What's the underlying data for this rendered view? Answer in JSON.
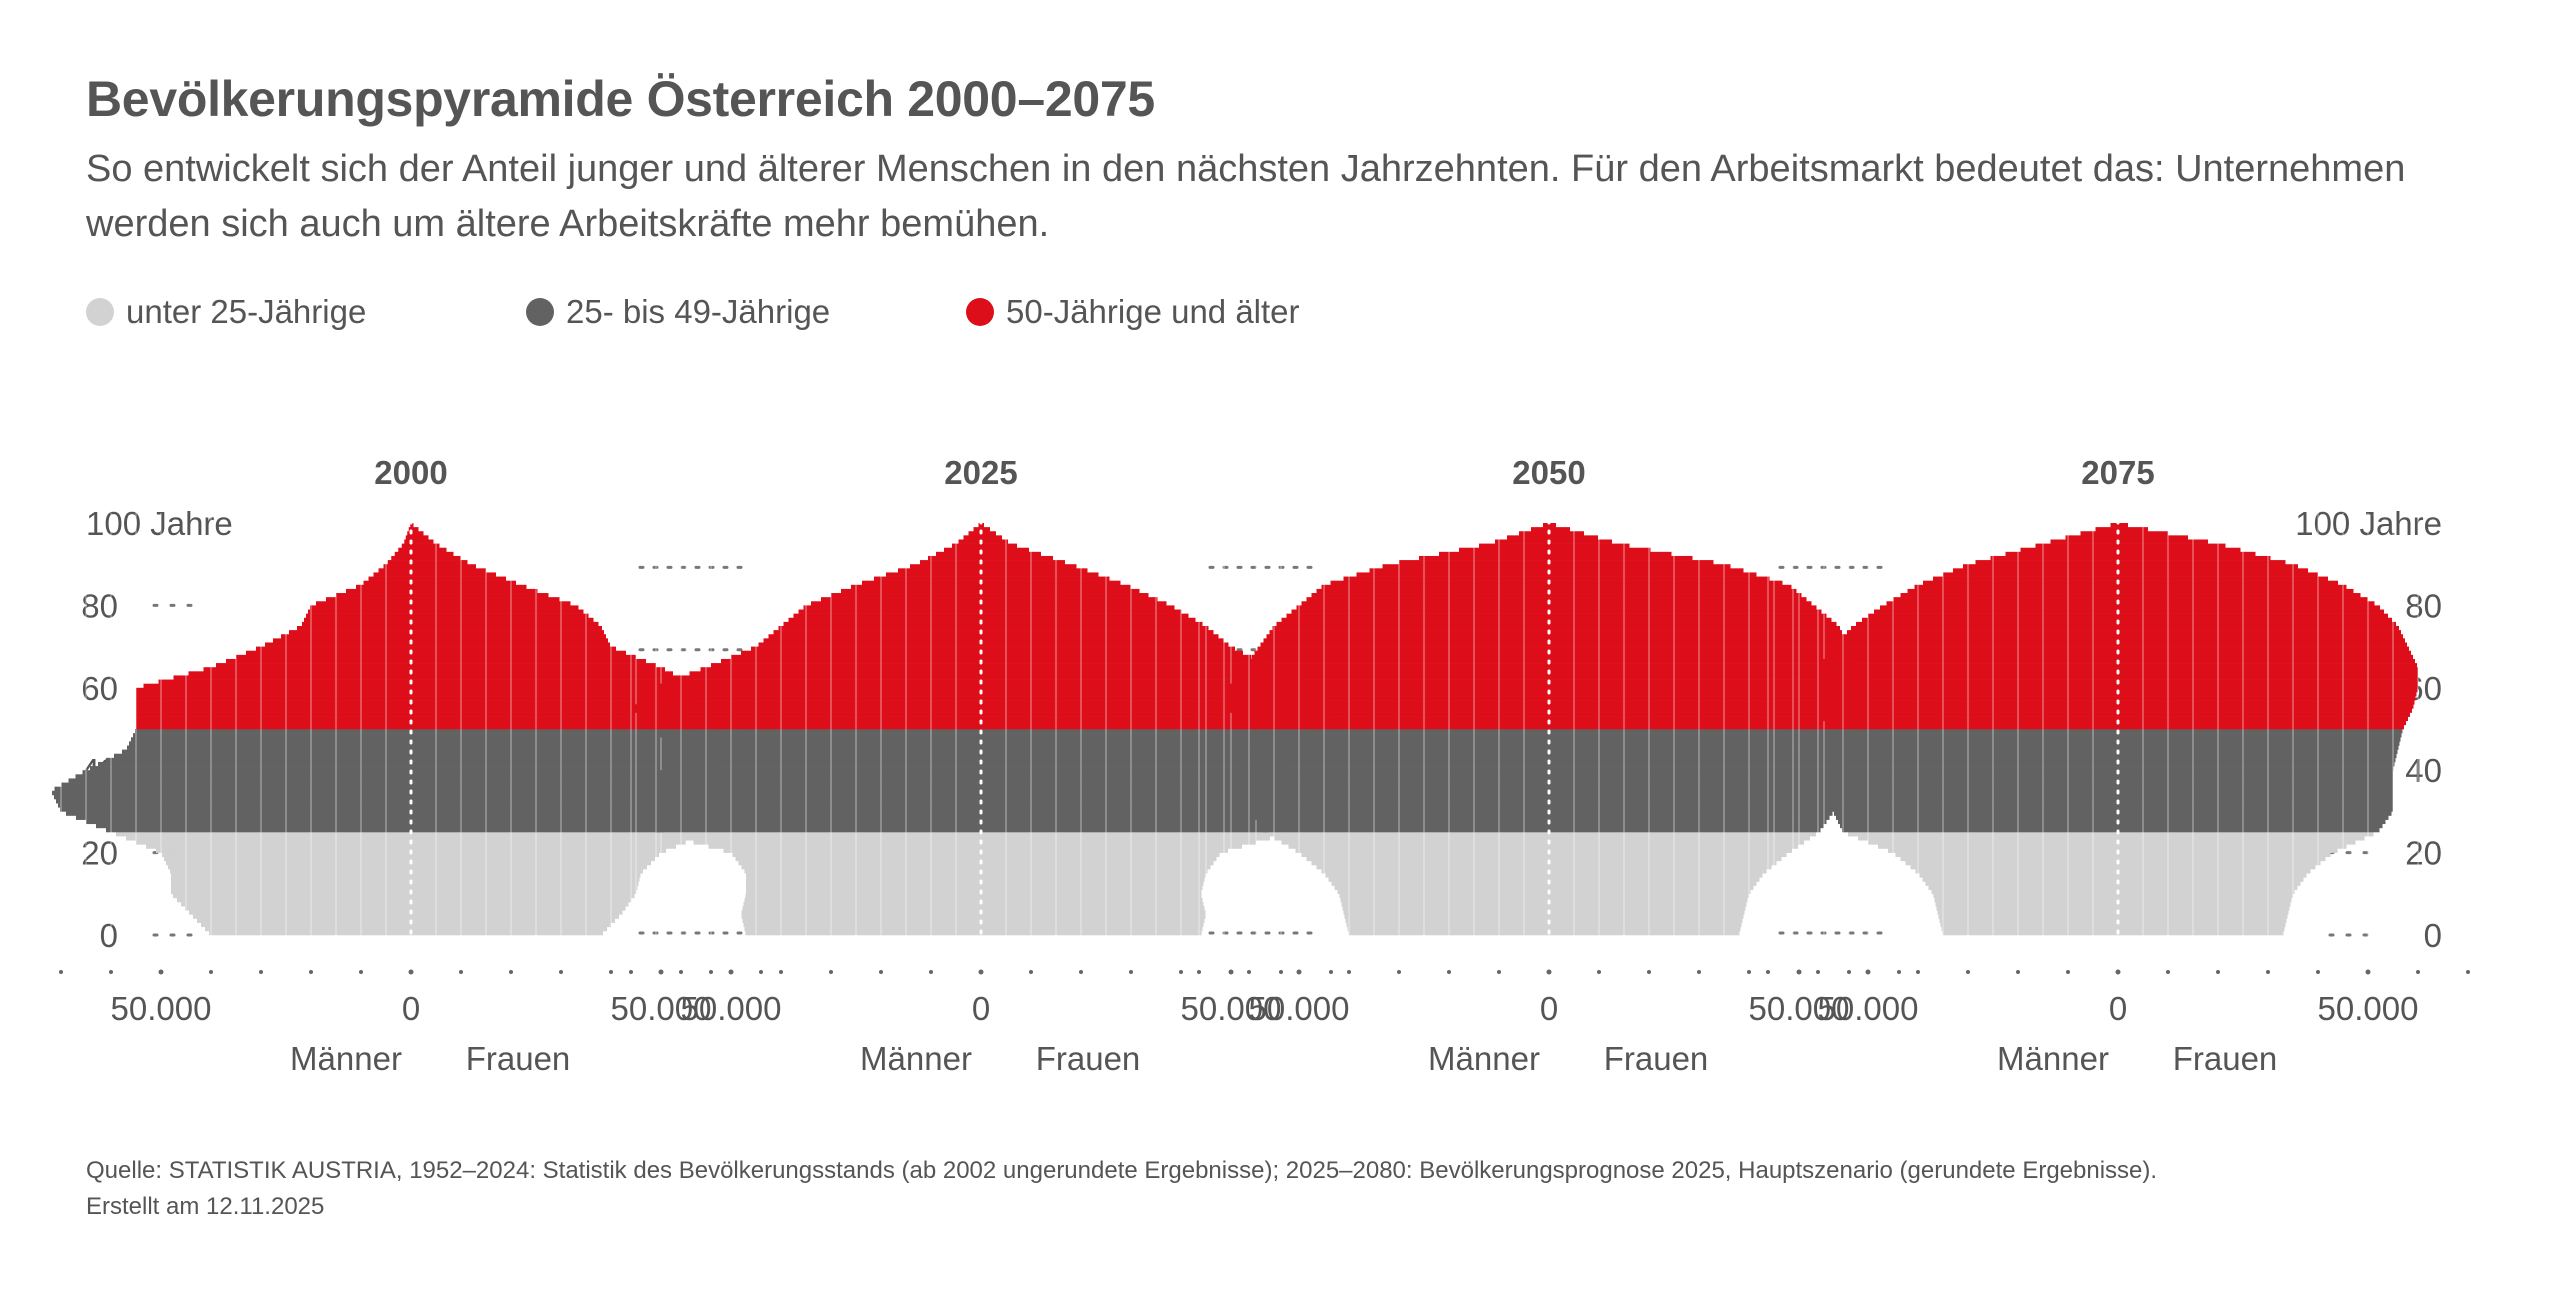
{
  "title": "Bevölkerungspyramide Österreich 2000–2075",
  "subtitle": "So entwickelt sich der Anteil junger und älterer Menschen in den nächsten Jahrzehnten. Für den Arbeitsmarkt bedeutet das: Unternehmen werden sich auch um ältere Arbeitskräfte mehr bemühen.",
  "legend": [
    {
      "label": "unter 25-Jährige",
      "color": "#d2d2d2"
    },
    {
      "label": "25- bis 49-Jährige",
      "color": "#626262"
    },
    {
      "label": "50-Jährige und älter",
      "color": "#dd0e19"
    }
  ],
  "source": {
    "line1": "Quelle: STATISTIK AUSTRIA, 1952–2024: Statistik des Bevölkerungsstands (ab 2002 ungerundete Ergebnisse); 2025–2080: Bevölkerungsprognose 2025, Hauptszenario (gerundete Ergebnisse).",
    "line2": "Erstellt am 12.11.2025"
  },
  "chart_data": {
    "type": "population-pyramid",
    "age_unit_label": "Jahre",
    "y_ticks": [
      0,
      20,
      40,
      60,
      80,
      100
    ],
    "y_top_label": "100 Jahre",
    "ylim": [
      0,
      100
    ],
    "x_ticks": [
      -50000,
      0,
      50000
    ],
    "x_tick_labels": [
      "50.000",
      "0",
      "50.000"
    ],
    "xlim": [
      -70000,
      70000
    ],
    "male_label": "Männer",
    "female_label": "Frauen",
    "age_groups": [
      {
        "name": "unter 25-Jährige",
        "from": 0,
        "to": 24,
        "color": "#d2d2d2"
      },
      {
        "name": "25- bis 49-Jährige",
        "from": 25,
        "to": 49,
        "color": "#626262"
      },
      {
        "name": "50-Jährige und älter",
        "from": 50,
        "to": 100,
        "color": "#dd0e19"
      }
    ],
    "panels": [
      {
        "year": "2000",
        "ages": [
          0,
          5,
          10,
          15,
          20,
          25,
          30,
          35,
          40,
          45,
          50,
          55,
          60,
          65,
          70,
          75,
          80,
          85,
          90,
          95,
          100
        ],
        "male": [
          40000,
          44000,
          48000,
          48000,
          50000,
          60000,
          70000,
          72000,
          65000,
          57000,
          55000,
          55000,
          55000,
          40000,
          30000,
          22000,
          20000,
          10000,
          5000,
          1500,
          0
        ],
        "female": [
          38000,
          42000,
          45000,
          46000,
          50000,
          60000,
          70000,
          70000,
          63000,
          56000,
          55000,
          55000,
          58000,
          50000,
          40000,
          38000,
          33000,
          22000,
          12000,
          5000,
          0
        ]
      },
      {
        "year": "2025",
        "ages": [
          0,
          5,
          10,
          15,
          20,
          25,
          30,
          35,
          40,
          45,
          50,
          55,
          60,
          65,
          70,
          75,
          80,
          85,
          90,
          95,
          100
        ],
        "male": [
          47000,
          48000,
          47000,
          47000,
          50000,
          65000,
          66000,
          65000,
          64000,
          62000,
          65000,
          70000,
          66000,
          55000,
          45000,
          40000,
          35000,
          25000,
          13000,
          5000,
          0
        ],
        "female": [
          44000,
          45000,
          44000,
          45000,
          48000,
          62000,
          63000,
          62000,
          61000,
          61000,
          65000,
          70000,
          66000,
          58000,
          50000,
          45000,
          38000,
          29000,
          18000,
          6000,
          0
        ]
      },
      {
        "year": "2050",
        "ages": [
          0,
          5,
          10,
          15,
          20,
          25,
          30,
          35,
          40,
          45,
          50,
          55,
          60,
          65,
          70,
          75,
          80,
          85,
          90,
          95,
          100
        ],
        "male": [
          40000,
          41000,
          42000,
          45000,
          50000,
          57000,
          60000,
          62000,
          61000,
          60000,
          61000,
          64000,
          64000,
          61000,
          58000,
          55000,
          50000,
          45000,
          32000,
          12000,
          0
        ],
        "female": [
          38000,
          39000,
          40000,
          43000,
          48000,
          54000,
          57000,
          59000,
          59000,
          58000,
          60000,
          64000,
          64000,
          62000,
          60000,
          58000,
          53000,
          48000,
          35000,
          14000,
          0
        ]
      },
      {
        "year": "2075",
        "ages": [
          0,
          5,
          10,
          15,
          20,
          25,
          30,
          35,
          40,
          45,
          50,
          55,
          60,
          65,
          70,
          75,
          80,
          85,
          90,
          95,
          100
        ],
        "male": [
          35000,
          36000,
          37000,
          40000,
          45000,
          55000,
          57000,
          57000,
          57000,
          58000,
          58000,
          60000,
          60000,
          60000,
          57000,
          53000,
          47000,
          40000,
          30000,
          15000,
          0
        ],
        "female": [
          33000,
          34000,
          35000,
          38000,
          43000,
          52000,
          55000,
          55000,
          55000,
          56000,
          57000,
          59000,
          60000,
          60000,
          58000,
          56000,
          52000,
          45000,
          35000,
          20000,
          0
        ]
      }
    ]
  }
}
